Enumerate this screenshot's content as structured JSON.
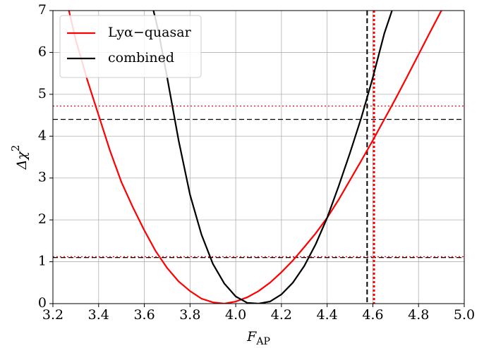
{
  "chart_data": {
    "type": "line",
    "xlabel": {
      "main": "F",
      "sub": "AP"
    },
    "ylabel": {
      "main": "Δχ",
      "sup": "2"
    },
    "series": [
      {
        "name": "Lyα−quasar",
        "color": "#ff0000",
        "x": [
          3.27,
          3.3,
          3.35,
          3.4,
          3.45,
          3.5,
          3.55,
          3.6,
          3.65,
          3.7,
          3.75,
          3.8,
          3.85,
          3.9,
          3.95,
          4.0,
          4.05,
          4.1,
          4.15,
          4.2,
          4.25,
          4.3,
          4.35,
          4.4,
          4.45,
          4.5,
          4.55,
          4.6,
          4.65,
          4.7,
          4.75,
          4.8,
          4.85,
          4.9
        ],
        "values": [
          7.0,
          6.3,
          5.35,
          4.5,
          3.65,
          2.9,
          2.3,
          1.75,
          1.25,
          0.85,
          0.53,
          0.3,
          0.12,
          0.03,
          0.0,
          0.05,
          0.15,
          0.3,
          0.5,
          0.75,
          1.03,
          1.35,
          1.68,
          2.05,
          2.48,
          2.95,
          3.42,
          3.9,
          4.4,
          4.9,
          5.42,
          5.95,
          6.48,
          7.0
        ]
      },
      {
        "name": "combined",
        "color": "#000000",
        "x": [
          3.64,
          3.66,
          3.7,
          3.75,
          3.8,
          3.85,
          3.9,
          3.95,
          4.0,
          4.05,
          4.1,
          4.15,
          4.2,
          4.25,
          4.3,
          4.35,
          4.4,
          4.45,
          4.5,
          4.55,
          4.6,
          4.65,
          4.69
        ],
        "values": [
          7.0,
          6.55,
          5.4,
          3.9,
          2.6,
          1.65,
          0.95,
          0.48,
          0.17,
          0.02,
          0.0,
          0.05,
          0.22,
          0.5,
          0.9,
          1.42,
          2.05,
          2.8,
          3.6,
          4.45,
          5.4,
          6.45,
          7.1
        ]
      }
    ],
    "hlines": [
      {
        "value": 4.72,
        "color": "#ff0000",
        "style": "dotted"
      },
      {
        "value": 1.12,
        "color": "#ff0000",
        "style": "dotted"
      },
      {
        "value": 4.4,
        "color": "#000000",
        "style": "dashed"
      },
      {
        "value": 1.1,
        "color": "#000000",
        "style": "dashed"
      }
    ],
    "vlines": [
      {
        "value": 4.575,
        "color": "#000000",
        "style": "dashed"
      },
      {
        "value": 4.605,
        "color": "#ff0000",
        "style": "dotted"
      }
    ],
    "xlim": [
      3.2,
      5.0
    ],
    "xticks": [
      3.2,
      3.4,
      3.6,
      3.8,
      {
        "value": 4.0,
        "label": "4.0"
      },
      4.2,
      4.4,
      4.6,
      4.8,
      {
        "value": 5.0,
        "label": "5.0"
      }
    ],
    "ylim": [
      0,
      7
    ],
    "yticks": [
      0,
      1,
      2,
      3,
      4,
      5,
      6,
      7
    ],
    "grid": true,
    "legend": "upper left"
  }
}
